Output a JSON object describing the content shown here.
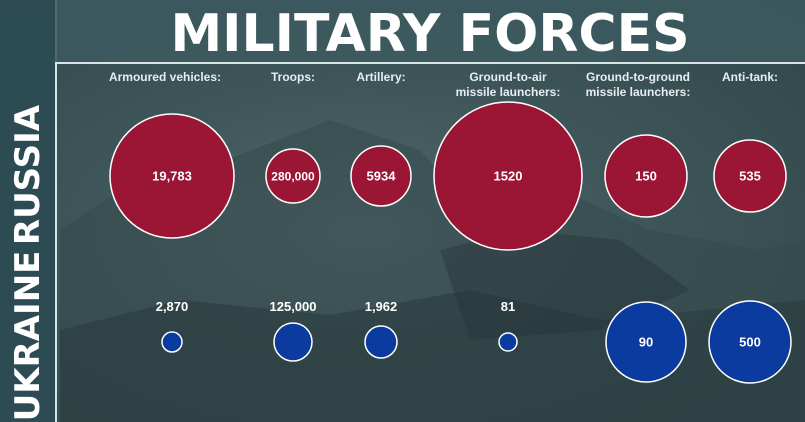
{
  "title": "MILITARY FORCES",
  "colors": {
    "russia": "#9b1534",
    "ukraine": "#0b3b9e",
    "stroke": "#ffffff",
    "background": "#3e5659"
  },
  "chart_data": {
    "type": "bubble",
    "categories": [
      "Armoured vehicles:",
      "Troops:",
      "Artillery:",
      "Ground-to-air\nmissile launchers:",
      "Ground-to-ground\nmissile launchers:",
      "Anti-tank:"
    ],
    "series": [
      {
        "name": "RUSSIA",
        "values": [
          19783,
          280000,
          5934,
          1520,
          150,
          535
        ],
        "labels": [
          "19,783",
          "280,000",
          "5934",
          "1520",
          "150",
          "535"
        ]
      },
      {
        "name": "UKRAINE",
        "values": [
          2870,
          125000,
          1962,
          81,
          90,
          500
        ],
        "labels": [
          "2,870",
          "125,000",
          "1,962",
          "81",
          "90",
          "500"
        ]
      }
    ]
  }
}
